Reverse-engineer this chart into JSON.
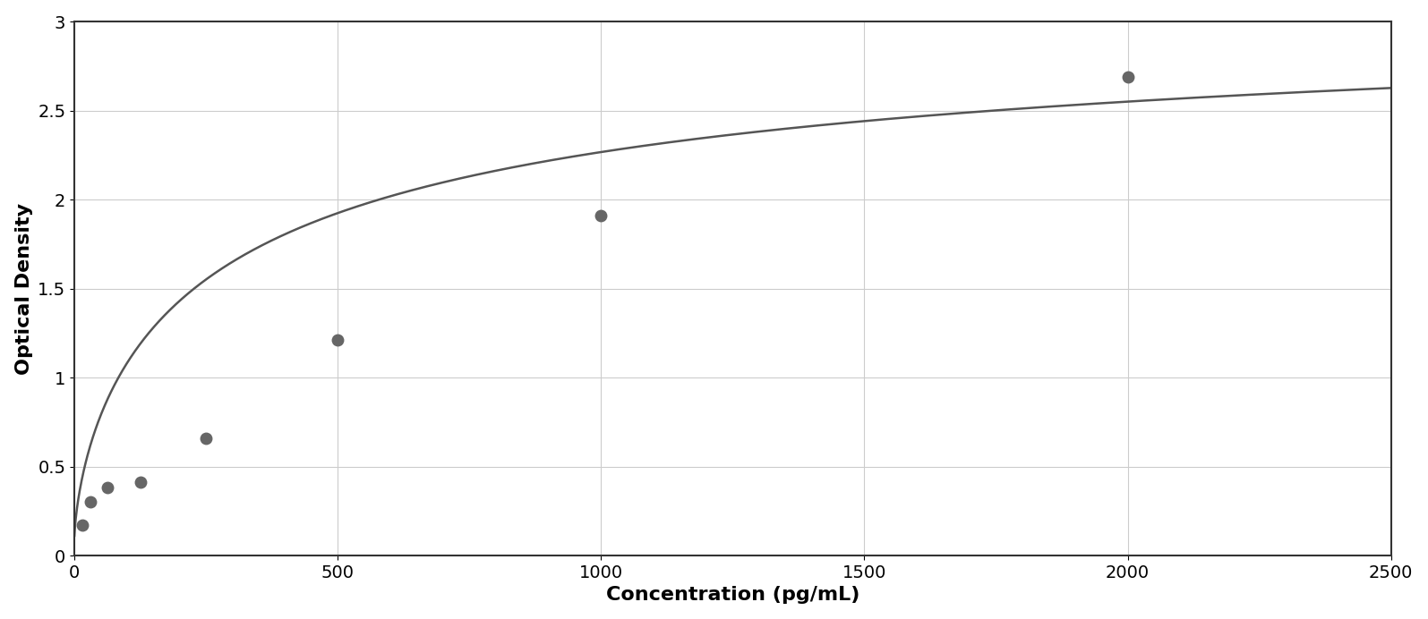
{
  "x_data": [
    15.625,
    31.25,
    62.5,
    125,
    250,
    500,
    1000,
    2000
  ],
  "y_data": [
    0.17,
    0.3,
    0.38,
    0.41,
    0.66,
    1.21,
    1.91,
    2.69
  ],
  "xlabel": "Concentration (pg/mL)",
  "ylabel": "Optical Density",
  "xlim": [
    0,
    2500
  ],
  "ylim": [
    0,
    3.0
  ],
  "xticks": [
    0,
    500,
    1000,
    1500,
    2000,
    2500
  ],
  "yticks": [
    0,
    0.5,
    1.0,
    1.5,
    2.0,
    2.5,
    3.0
  ],
  "marker_color": "#666666",
  "line_color": "#555555",
  "grid_color": "#cccccc",
  "background_color": "#ffffff",
  "border_color": "#333333",
  "marker_size": 9,
  "line_width": 1.8,
  "xlabel_fontsize": 16,
  "ylabel_fontsize": 16,
  "tick_fontsize": 14,
  "xlabel_fontweight": "bold",
  "ylabel_fontweight": "bold"
}
